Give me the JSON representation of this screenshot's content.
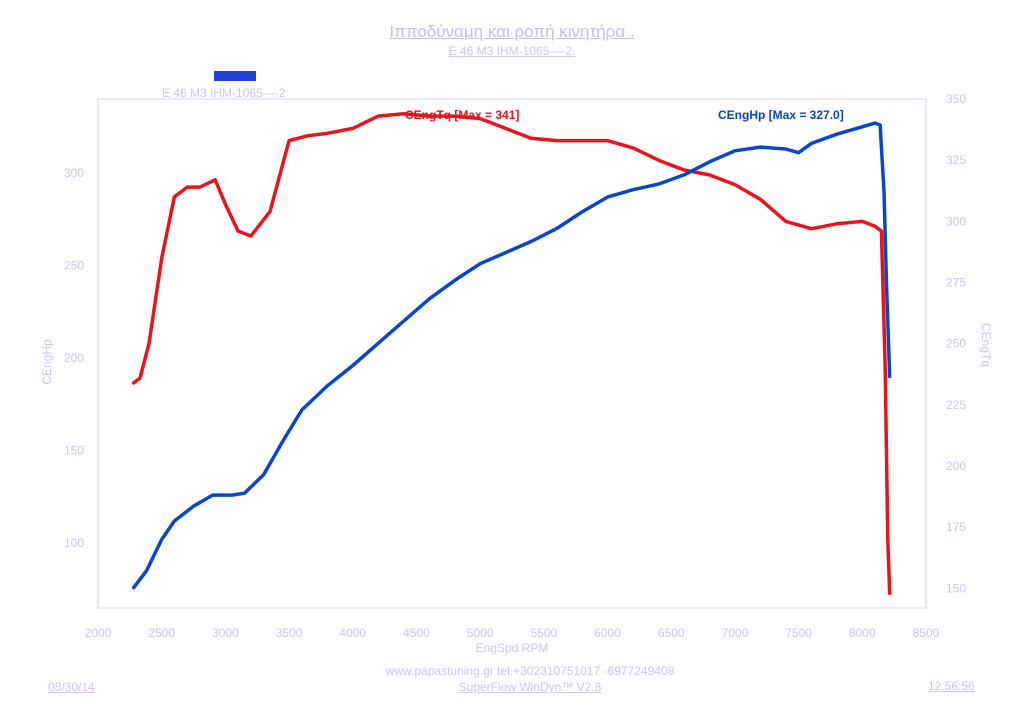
{
  "header": {
    "title": "Ιπποδύναμη και ροπή κινητήρα .",
    "subtitle": "E 46 M3   IHM-1065----2."
  },
  "legend": {
    "label": "E 46 M3   IHM-1065----2"
  },
  "footer": {
    "url": "www.papastuning.gr          tel.+302310751017  -6977249408",
    "software": "SuperFlow WinDyn™ V2.8",
    "date": "08/30/14",
    "time": "12:56:56"
  },
  "colors": {
    "hp": "#0a47c8",
    "tq": "#e8141c",
    "axis": "#c9c9e6"
  },
  "chart_data": {
    "type": "line",
    "xlabel": "EngSpd  RPM",
    "ylabel_left": "CEngHp",
    "ylabel_right": "CEngTq",
    "x_ticks": [
      2000,
      2500,
      3000,
      3500,
      4000,
      4500,
      5000,
      5500,
      6000,
      6500,
      7000,
      7500,
      8000,
      8500
    ],
    "y_left_ticks": [
      100,
      150,
      200,
      250,
      300
    ],
    "y_right_ticks": [
      150,
      175,
      200,
      225,
      250,
      275,
      300,
      325,
      350
    ],
    "series": [
      {
        "name": "CEngTq",
        "label": "CEngTq [Max = 341]",
        "axis": "right",
        "points": [
          [
            2280,
            234
          ],
          [
            2330,
            236
          ],
          [
            2400,
            250
          ],
          [
            2500,
            285
          ],
          [
            2600,
            310
          ],
          [
            2700,
            314
          ],
          [
            2800,
            314
          ],
          [
            2920,
            317
          ],
          [
            3000,
            307
          ],
          [
            3100,
            296
          ],
          [
            3200,
            294
          ],
          [
            3350,
            304
          ],
          [
            3500,
            333
          ],
          [
            3650,
            335
          ],
          [
            3800,
            336
          ],
          [
            4000,
            338
          ],
          [
            4200,
            343
          ],
          [
            4400,
            344
          ],
          [
            4600,
            343
          ],
          [
            4800,
            343
          ],
          [
            5000,
            342
          ],
          [
            5200,
            338
          ],
          [
            5400,
            334
          ],
          [
            5600,
            333
          ],
          [
            5800,
            333
          ],
          [
            6000,
            333
          ],
          [
            6200,
            330
          ],
          [
            6400,
            325
          ],
          [
            6600,
            321
          ],
          [
            6800,
            319
          ],
          [
            7000,
            315
          ],
          [
            7200,
            309
          ],
          [
            7400,
            300
          ],
          [
            7600,
            297
          ],
          [
            7700,
            298
          ],
          [
            7800,
            299
          ],
          [
            8000,
            300
          ],
          [
            8100,
            298
          ],
          [
            8150,
            296
          ],
          [
            8180,
            240
          ],
          [
            8200,
            170
          ],
          [
            8215,
            148
          ]
        ]
      },
      {
        "name": "CEngHp",
        "label": "CEngHp [Max = 327.0]",
        "axis": "left",
        "points": [
          [
            2280,
            76
          ],
          [
            2380,
            85
          ],
          [
            2500,
            102
          ],
          [
            2600,
            112
          ],
          [
            2750,
            120
          ],
          [
            2900,
            126
          ],
          [
            3050,
            126
          ],
          [
            3150,
            127
          ],
          [
            3300,
            137
          ],
          [
            3450,
            155
          ],
          [
            3600,
            172
          ],
          [
            3800,
            185
          ],
          [
            4000,
            196
          ],
          [
            4200,
            208
          ],
          [
            4400,
            220
          ],
          [
            4600,
            232
          ],
          [
            4800,
            242
          ],
          [
            5000,
            251
          ],
          [
            5200,
            257
          ],
          [
            5400,
            263
          ],
          [
            5600,
            270
          ],
          [
            5800,
            279
          ],
          [
            6000,
            287
          ],
          [
            6200,
            291
          ],
          [
            6400,
            294
          ],
          [
            6600,
            299
          ],
          [
            6800,
            306
          ],
          [
            7000,
            312
          ],
          [
            7200,
            314
          ],
          [
            7400,
            313
          ],
          [
            7500,
            311
          ],
          [
            7600,
            316
          ],
          [
            7800,
            321
          ],
          [
            8000,
            325
          ],
          [
            8100,
            327
          ],
          [
            8140,
            326
          ],
          [
            8170,
            290
          ],
          [
            8190,
            240
          ],
          [
            8215,
            190
          ]
        ]
      }
    ],
    "xlim": [
      2000,
      8500
    ],
    "ylim_left": [
      65,
      340
    ],
    "ylim_right": [
      142,
      350
    ],
    "grid": false
  }
}
